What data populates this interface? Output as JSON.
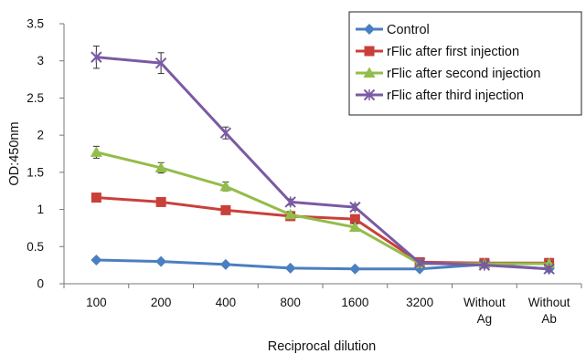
{
  "chart_data": {
    "type": "line",
    "title": "",
    "xlabel": "Reciprocal dilution",
    "ylabel": "OD:450nm",
    "categories": [
      [
        "100"
      ],
      [
        "200"
      ],
      [
        "400"
      ],
      [
        "800"
      ],
      [
        "1600"
      ],
      [
        "3200"
      ],
      [
        "Without",
        "Ag"
      ],
      [
        "Without",
        "Ab"
      ]
    ],
    "ylim": [
      0,
      3.5
    ],
    "yticks": [
      "0",
      "0.5",
      "1",
      "1.5",
      "2",
      "2.5",
      "3",
      "3.5"
    ],
    "grid": false,
    "legend_position": "top-right",
    "series": [
      {
        "name": "Control",
        "color": "#4a7fc1",
        "marker": "diamond",
        "values": [
          0.32,
          0.3,
          0.26,
          0.21,
          0.2,
          0.2,
          0.26,
          0.2
        ],
        "errors": [
          0.02,
          0.02,
          0.02,
          0.02,
          0.02,
          0.02,
          0.02,
          0.02
        ]
      },
      {
        "name": "rFlic after first injection",
        "color": "#c9403a",
        "marker": "square",
        "values": [
          1.16,
          1.1,
          0.99,
          0.91,
          0.87,
          0.29,
          0.28,
          0.28
        ],
        "errors": [
          0.04,
          0.04,
          0.04,
          0.04,
          0.04,
          0.03,
          0.03,
          0.03
        ]
      },
      {
        "name": "rFlic after second injection",
        "color": "#93bd4a",
        "marker": "triangle",
        "values": [
          1.77,
          1.56,
          1.31,
          0.93,
          0.76,
          0.27,
          0.27,
          0.27
        ],
        "errors": [
          0.08,
          0.07,
          0.06,
          0.04,
          0.05,
          0.03,
          0.03,
          0.03
        ]
      },
      {
        "name": "rFlic after third injection",
        "color": "#7a5aa3",
        "marker": "x",
        "values": [
          3.05,
          2.97,
          2.03,
          1.1,
          1.03,
          0.28,
          0.25,
          0.2
        ],
        "errors": [
          0.15,
          0.14,
          0.08,
          0.04,
          0.04,
          0.03,
          0.03,
          0.03
        ]
      }
    ]
  }
}
